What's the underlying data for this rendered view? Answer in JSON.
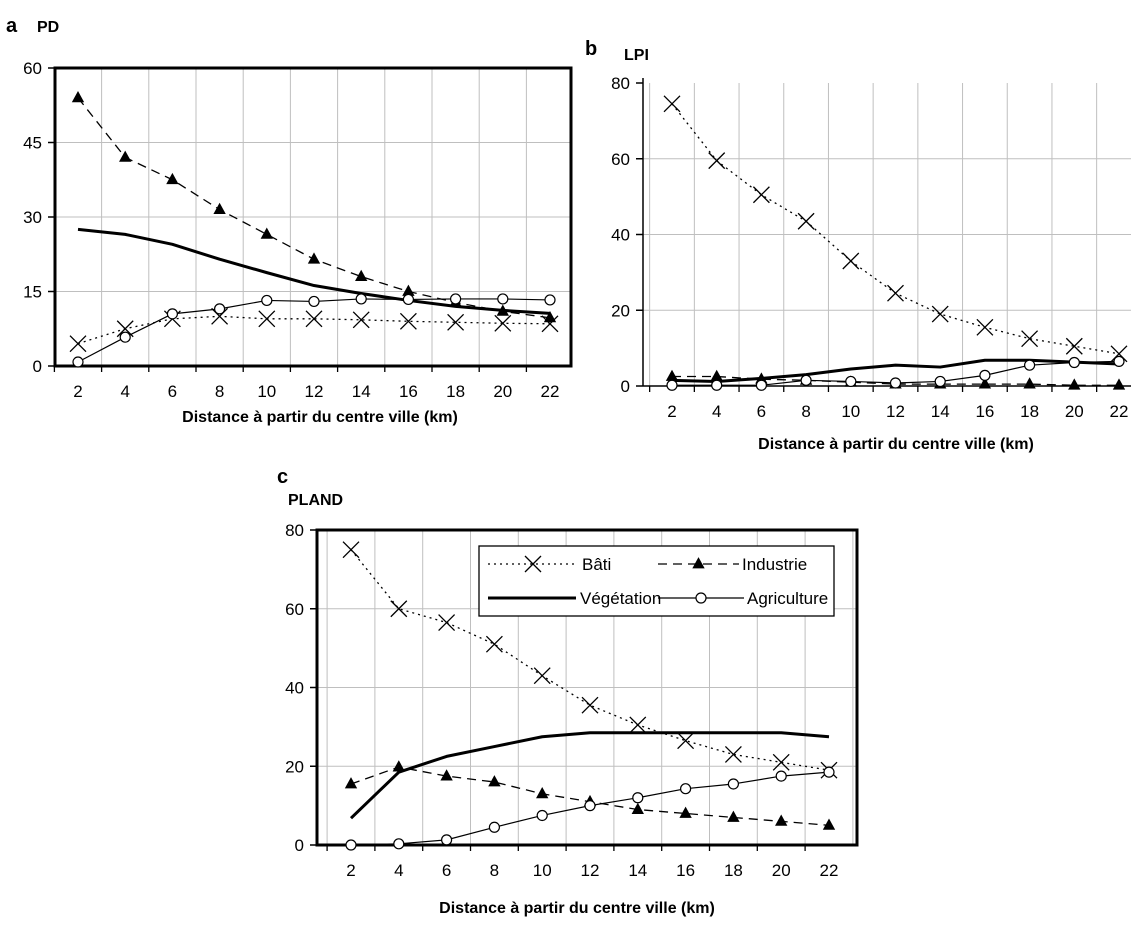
{
  "chart_data": [
    {
      "id": "a",
      "type": "line",
      "panel_label": "a",
      "ylabel": "PD",
      "xlabel": "Distance à partir du centre ville (km)",
      "x": [
        2,
        4,
        6,
        8,
        10,
        12,
        14,
        16,
        18,
        20,
        22
      ],
      "ylim": [
        0,
        60
      ],
      "yticks": [
        0,
        15,
        30,
        45,
        60
      ],
      "grid": true,
      "series": [
        {
          "name": "Bâti",
          "values": [
            4.5,
            7.5,
            9.5,
            10,
            9.5,
            9.5,
            9.3,
            9,
            8.8,
            8.6,
            8.5
          ]
        },
        {
          "name": "Industrie",
          "values": [
            54,
            42,
            37.5,
            31.5,
            26.5,
            21.5,
            18,
            15,
            12.8,
            11,
            9.7
          ]
        },
        {
          "name": "Végétation",
          "values": [
            27.5,
            26.5,
            24.5,
            21.5,
            18.8,
            16.2,
            14.6,
            13.2,
            12,
            11.2,
            10.6
          ]
        },
        {
          "name": "Agriculture",
          "values": [
            0.8,
            5.8,
            10.5,
            11.5,
            13.2,
            13,
            13.5,
            13.4,
            13.5,
            13.5,
            13.3
          ]
        }
      ]
    },
    {
      "id": "b",
      "type": "line",
      "panel_label": "b",
      "ylabel": "LPI",
      "xlabel": "Distance à partir du centre ville (km)",
      "x": [
        2,
        4,
        6,
        8,
        10,
        12,
        14,
        16,
        18,
        20,
        22
      ],
      "ylim": [
        0,
        80
      ],
      "yticks": [
        0,
        20,
        40,
        60,
        80
      ],
      "grid": true,
      "series": [
        {
          "name": "Bâti",
          "values": [
            74.5,
            59.5,
            50.5,
            43.5,
            33,
            24.5,
            19,
            15.5,
            12.5,
            10.5,
            8.5
          ]
        },
        {
          "name": "Industrie",
          "values": [
            2.5,
            2.5,
            1.8,
            1.5,
            1,
            0.5,
            0.5,
            0.5,
            0.5,
            0.2,
            0.2
          ]
        },
        {
          "name": "Végétation",
          "values": [
            1.5,
            1.2,
            2,
            3,
            4.5,
            5.5,
            5,
            6.8,
            6.8,
            6.3,
            5.8
          ]
        },
        {
          "name": "Agriculture",
          "values": [
            0.2,
            0.2,
            0.2,
            1.5,
            1.2,
            0.8,
            1.2,
            2.8,
            5.5,
            6.2,
            6.5
          ]
        }
      ]
    },
    {
      "id": "c",
      "type": "line",
      "panel_label": "c",
      "ylabel": "PLAND",
      "xlabel": "Distance à partir du centre ville (km)",
      "x": [
        2,
        4,
        6,
        8,
        10,
        12,
        14,
        16,
        18,
        20,
        22
      ],
      "ylim": [
        0,
        80
      ],
      "yticks": [
        0,
        20,
        40,
        60,
        80
      ],
      "grid": true,
      "legend_position": "top-right",
      "series": [
        {
          "name": "Bâti",
          "values": [
            75,
            60,
            56.5,
            51,
            43,
            35.5,
            30.5,
            26.5,
            23,
            21,
            19
          ]
        },
        {
          "name": "Industrie",
          "values": [
            15.5,
            19.8,
            17.5,
            16,
            13,
            11,
            9,
            8,
            7,
            6,
            5
          ]
        },
        {
          "name": "Végétation",
          "values": [
            6.8,
            18.5,
            22.5,
            25,
            27.5,
            28.5,
            28.5,
            28.5,
            28.5,
            28.5,
            27.5
          ]
        },
        {
          "name": "Agriculture",
          "values": [
            0,
            0.3,
            1.3,
            4.5,
            7.5,
            10,
            12,
            14.3,
            15.5,
            17.5,
            18.5
          ]
        }
      ]
    }
  ],
  "legend": {
    "items": [
      {
        "series": "Bâti",
        "label": "Bâti"
      },
      {
        "series": "Industrie",
        "label": "Industrie"
      },
      {
        "series": "Végétation",
        "label": "Végétation"
      },
      {
        "series": "Agriculture",
        "label": "Agriculture"
      }
    ]
  },
  "colors": {
    "line": "#000000",
    "grid": "#bfbfbf",
    "frame": "#000000",
    "background": "#ffffff"
  }
}
